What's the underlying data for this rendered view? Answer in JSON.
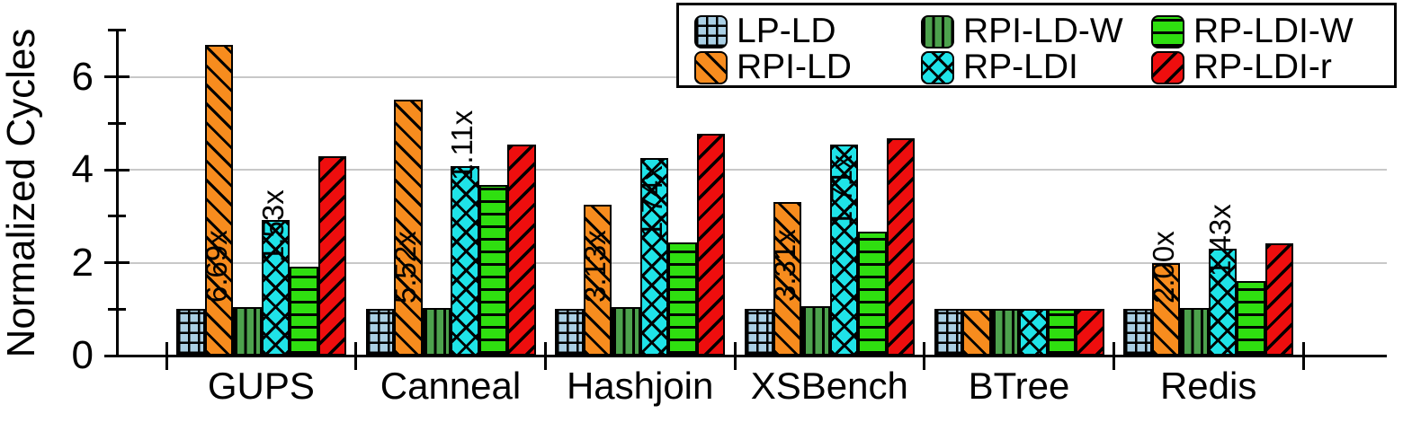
{
  "colors": {
    "background": "#ffffff",
    "gridline": "#c8c8c8",
    "axis": "#000000",
    "hatch_lines": "#000000",
    "legend_border": "#000000"
  },
  "series_styles": {
    "LP-LD": {
      "color": "#aacfe4",
      "pattern": "grid"
    },
    "RPI-LD": {
      "color": "#f78c1e",
      "pattern": "diag-down"
    },
    "RPI-LD-W": {
      "color": "#4da24d",
      "pattern": "vertical"
    },
    "RP-LDI": {
      "color": "#1fe3e8",
      "pattern": "cross"
    },
    "RP-LDI-W": {
      "color": "#2fdf10",
      "pattern": "horizontal"
    },
    "RP-LDI-r": {
      "color": "#ee0e0e",
      "pattern": "diag-up"
    }
  },
  "legend": {
    "position": "top-right-inside",
    "columns": [
      [
        {
          "label": "LP-LD",
          "series": "LP-LD"
        },
        {
          "label": "RPI-LD",
          "series": "RPI-LD"
        }
      ],
      [
        {
          "label": "RPI-LD-W",
          "series": "RPI-LD-W"
        },
        {
          "label": "RP-LDI",
          "series": "RP-LDI"
        }
      ],
      [
        {
          "label": "RP-LDI-W",
          "series": "RP-LDI-W"
        },
        {
          "label": "RP-LDI-r",
          "series": "RP-LDI-r"
        }
      ]
    ]
  },
  "chart_data": {
    "type": "bar",
    "title": "",
    "xlabel": "",
    "ylabel": "Normalized Cycles",
    "ylim": [
      0,
      7
    ],
    "y_major_ticks": [
      0,
      2,
      4,
      6
    ],
    "y_minor_ticks": [
      1,
      3,
      5,
      7
    ],
    "grid": "horizontal-major-only",
    "legend_position": "top-right inside plot",
    "categories": [
      "GUPS",
      "Canneal",
      "Hashjoin",
      "XSBench",
      "BTree",
      "Redis"
    ],
    "series": [
      {
        "name": "LP-LD",
        "values": [
          1.0,
          1.0,
          1.0,
          1.0,
          1.0,
          1.0
        ]
      },
      {
        "name": "RPI-LD",
        "values": [
          6.69,
          5.52,
          3.25,
          3.31,
          1.0,
          2.0
        ]
      },
      {
        "name": "RPI-LD-W",
        "values": [
          1.05,
          1.02,
          1.04,
          1.07,
          1.0,
          1.02
        ]
      },
      {
        "name": "RP-LDI",
        "values": [
          2.92,
          4.08,
          4.25,
          4.55,
          1.0,
          2.31
        ]
      },
      {
        "name": "RP-LDI-W",
        "values": [
          1.91,
          3.67,
          2.44,
          2.66,
          1.0,
          1.61
        ]
      },
      {
        "name": "RP-LDI-r",
        "values": [
          4.3,
          4.54,
          4.78,
          4.67,
          1.0,
          2.41
        ]
      }
    ],
    "annotations": [
      {
        "category": "GUPS",
        "above_series": "RPI-LD-W",
        "text": "6.69x"
      },
      {
        "category": "GUPS",
        "above_series": "RP-LDI-W",
        "text": "1.53x"
      },
      {
        "category": "Canneal",
        "above_series": "RPI-LD-W",
        "text": "5.52x"
      },
      {
        "category": "Canneal",
        "above_series": "RP-LDI-W",
        "text": "1.11x"
      },
      {
        "category": "Hashjoin",
        "above_series": "RPI-LD-W",
        "text": "3.13x"
      },
      {
        "category": "Hashjoin",
        "above_series": "RP-LDI-W",
        "text": "1.74x"
      },
      {
        "category": "XSBench",
        "above_series": "RPI-LD-W",
        "text": "3.31x"
      },
      {
        "category": "XSBench",
        "above_series": "RP-LDI-W",
        "text": "1.71x"
      },
      {
        "category": "Redis",
        "above_series": "RPI-LD-W",
        "text": "2.00x"
      },
      {
        "category": "Redis",
        "above_series": "RP-LDI-W",
        "text": "1.43x"
      }
    ]
  }
}
